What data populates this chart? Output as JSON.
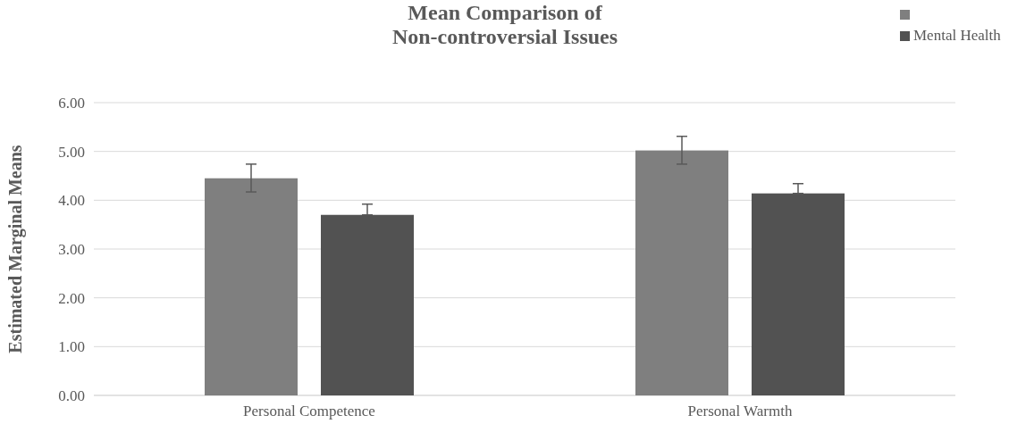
{
  "chart_data": {
    "type": "bar",
    "title": "Mean Comparison of\nNon-controversial Issues",
    "ylabel": "Estimated Marginal Means",
    "categories": [
      "Personal Competence",
      "Personal Warmth"
    ],
    "series": [
      {
        "color": "#7f7f7f",
        "values": [
          4.45,
          5.02
        ],
        "errors": [
          [
            4.17,
            4.74
          ],
          [
            4.74,
            5.31
          ]
        ]
      },
      {
        "name": "Mental Health",
        "color": "#525252",
        "values": [
          3.7,
          4.14
        ],
        "errors": [
          [
            3.7,
            3.92
          ],
          [
            4.14,
            4.34
          ]
        ]
      }
    ],
    "ylim": [
      0,
      6
    ],
    "yticks": [
      {
        "value": 0,
        "label": "0.00"
      },
      {
        "value": 1,
        "label": "1.00"
      },
      {
        "value": 2,
        "label": "2.00"
      },
      {
        "value": 3,
        "label": "3.00"
      },
      {
        "value": 4,
        "label": "4.00"
      },
      {
        "value": 5,
        "label": "5.00"
      },
      {
        "value": 6,
        "label": "6.00"
      }
    ],
    "grid": "y",
    "legend": "top right"
  }
}
